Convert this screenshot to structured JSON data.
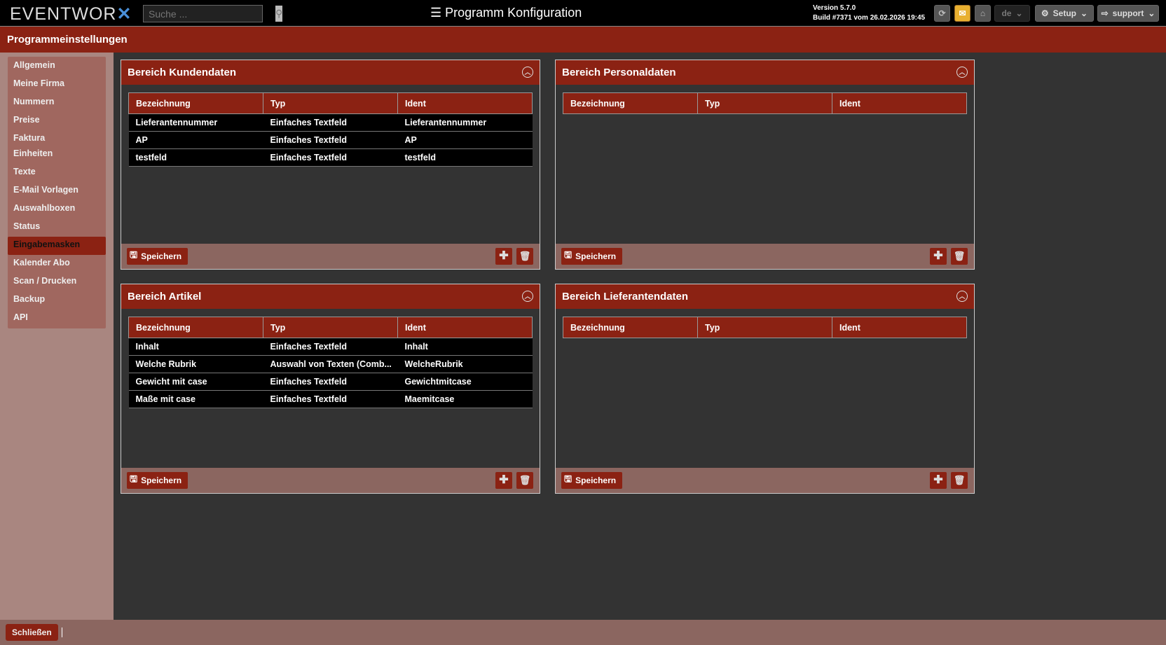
{
  "header": {
    "logo": "EVENTWORX",
    "search_placeholder": "Suche ...",
    "title": "Programm Konfiguration",
    "version": "Version 5.7.0",
    "build": "Build #7371 vom 26.02.2026 19:45",
    "lang": "de",
    "setup": "Setup",
    "user": "support"
  },
  "page_title": "Programmeinstellungen",
  "sidebar": {
    "active": "Eingabemasken",
    "items": [
      {
        "label": "Allgemein"
      },
      {
        "label": "Meine Firma"
      },
      {
        "label": "Nummern"
      },
      {
        "label": "Preise"
      },
      {
        "label": "Faktura"
      },
      {
        "label": "Einheiten"
      },
      {
        "label": "Texte"
      },
      {
        "label": "E-Mail Vorlagen"
      },
      {
        "label": "Auswahlboxen"
      },
      {
        "label": "Status"
      },
      {
        "label": "Eingabemasken"
      },
      {
        "label": "Kalender Abo"
      },
      {
        "label": "Scan / Drucken"
      },
      {
        "label": "Backup"
      },
      {
        "label": "API"
      }
    ]
  },
  "columns": [
    "Bezeichnung",
    "Typ",
    "Ident"
  ],
  "save_label": "Speichern",
  "panels": [
    {
      "title": "Bereich Kundendaten",
      "rows": [
        [
          "Lieferantennummer",
          "Einfaches Textfeld",
          "Lieferantennummer"
        ],
        [
          "AP",
          "Einfaches Textfeld",
          "AP"
        ],
        [
          "testfeld",
          "Einfaches Textfeld",
          "testfeld"
        ]
      ]
    },
    {
      "title": "Bereich Personaldaten",
      "rows": []
    },
    {
      "title": "Bereich Artikel",
      "rows": [
        [
          "Inhalt",
          "Einfaches Textfeld",
          "Inhalt"
        ],
        [
          "Welche Rubrik",
          "Auswahl von Texten (Comb...",
          "WelcheRubrik"
        ],
        [
          "Gewicht mit case",
          "Einfaches Textfeld",
          "Gewichtmitcase"
        ],
        [
          "Maße mit case",
          "Einfaches Textfeld",
          "Maemitcase"
        ]
      ]
    },
    {
      "title": "Bereich Lieferantendaten",
      "rows": []
    }
  ],
  "footer": {
    "close": "Schließen"
  },
  "colors": {
    "accent": "#8b2213",
    "sidebar": "#a98680",
    "footer": "#8b6660",
    "mail": "#e8b030"
  }
}
